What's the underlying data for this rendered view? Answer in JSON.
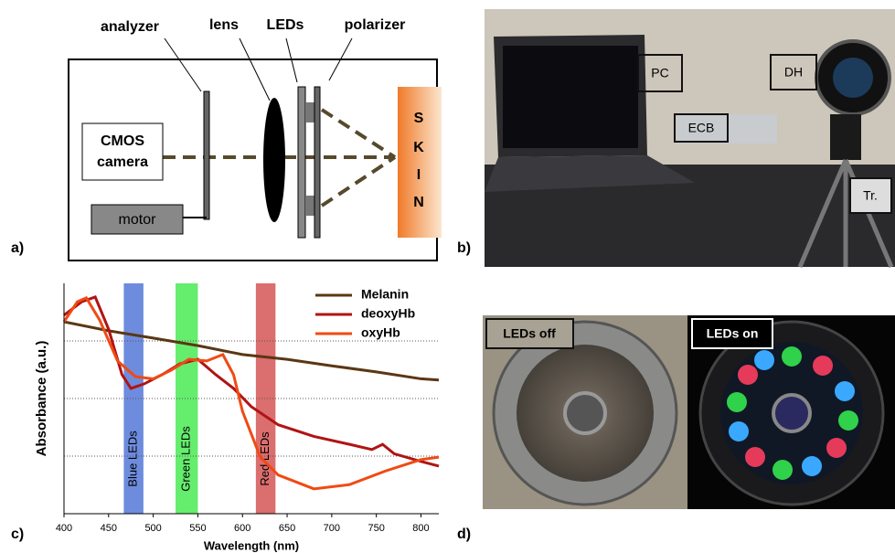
{
  "panel_labels": [
    "a)",
    "b)",
    "c)",
    "d)"
  ],
  "diagram": {
    "analyzer": "analyzer",
    "lens": "lens",
    "leds": "LEDs",
    "polarizer": "polarizer",
    "camera": [
      "CMOS",
      "camera"
    ],
    "motor": "motor",
    "skin": [
      "S",
      "K",
      "I",
      "N"
    ]
  },
  "photo_setup": {
    "labels": [
      "PC",
      "DH",
      "ECB",
      "Tr."
    ]
  },
  "photo_leds": {
    "labels": [
      "LEDs off",
      "LEDs on"
    ]
  },
  "chart_data": {
    "type": "line",
    "x_label": "Wavelength (nm)",
    "y_label": "Absorbance (a.u.)",
    "log_y": true,
    "xlim": [
      400,
      820
    ],
    "ylim": [
      0.001,
      10
    ],
    "xticks": [
      400,
      450,
      500,
      550,
      600,
      650,
      700,
      750,
      800
    ],
    "ygrid": [
      0.01,
      0.1,
      1
    ],
    "bands": [
      {
        "name": "Blue LEDs",
        "color": "#4a6fd6",
        "range": [
          467,
          489
        ]
      },
      {
        "name": "Green LEDs",
        "color": "#3ee84a",
        "range": [
          525,
          550
        ]
      },
      {
        "name": "Red LEDs",
        "color": "#d24a4a",
        "range": [
          615,
          637
        ]
      }
    ],
    "series": [
      {
        "name": "Melanin",
        "color": "#5a3714",
        "x": [
          400,
          450,
          500,
          550,
          600,
          650,
          700,
          750,
          800,
          820
        ],
        "values": [
          2.15,
          1.5,
          1.12,
          0.83,
          0.58,
          0.48,
          0.37,
          0.29,
          0.22,
          0.21
        ]
      },
      {
        "name": "deoxyHb",
        "color": "#b01414",
        "x": [
          400,
          420,
          435,
          450,
          465,
          475,
          490,
          510,
          530,
          550,
          570,
          590,
          610,
          640,
          680,
          720,
          745,
          757,
          770,
          800,
          820
        ],
        "values": [
          2.8,
          4.8,
          5.8,
          1.6,
          0.26,
          0.15,
          0.18,
          0.26,
          0.4,
          0.48,
          0.26,
          0.15,
          0.072,
          0.035,
          0.022,
          0.016,
          0.013,
          0.016,
          0.011,
          0.0081,
          0.0067
        ]
      },
      {
        "name": "oxyHb",
        "color": "#f04a14",
        "x": [
          400,
          415,
          425,
          440,
          460,
          480,
          500,
          520,
          540,
          560,
          578,
          590,
          600,
          620,
          640,
          680,
          720,
          760,
          800,
          820
        ],
        "values": [
          2.15,
          4.8,
          5.6,
          2.3,
          0.45,
          0.24,
          0.22,
          0.31,
          0.48,
          0.45,
          0.58,
          0.26,
          0.06,
          0.0096,
          0.0047,
          0.0027,
          0.0032,
          0.0055,
          0.0087,
          0.0096
        ]
      }
    ]
  }
}
